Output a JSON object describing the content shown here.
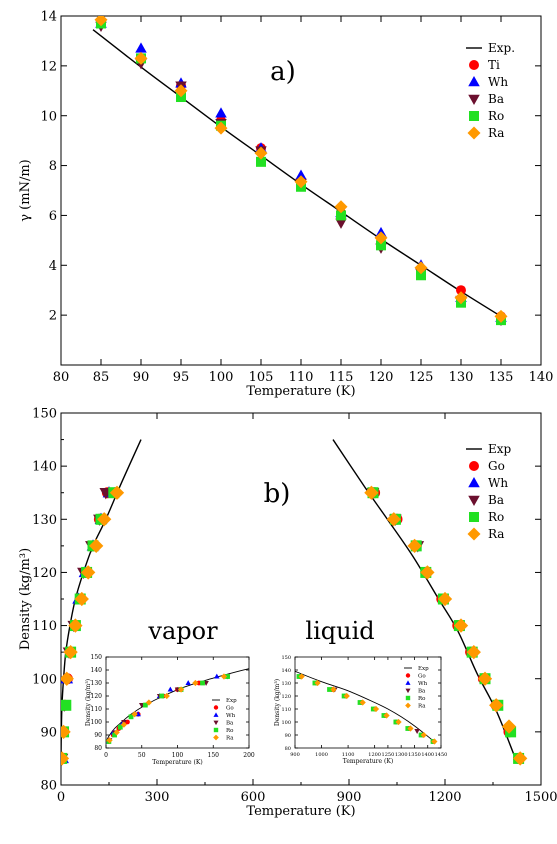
{
  "chart_data": [
    {
      "type": "scatter",
      "panel_label": "a)",
      "xlabel": "Temperature (K)",
      "ylabel": "γ (mN/m)",
      "xlim": [
        80,
        140
      ],
      "ylim": [
        0,
        14
      ],
      "xticks": [
        80,
        85,
        90,
        95,
        100,
        105,
        110,
        115,
        120,
        125,
        130,
        135,
        140
      ],
      "yticks": [
        2,
        4,
        6,
        8,
        10,
        12,
        14
      ],
      "legend_position": "top-right",
      "line": {
        "name": "Exp.",
        "x": [
          84,
          90,
          95,
          100,
          105,
          110,
          115,
          120,
          125,
          130,
          135
        ],
        "y": [
          13.45,
          11.95,
          10.75,
          9.55,
          8.4,
          7.25,
          6.15,
          5.05,
          4.0,
          2.95,
          1.95
        ]
      },
      "series": [
        {
          "name": "Ti",
          "marker": "circle",
          "color": "#ff0000",
          "x": [
            85,
            90,
            95,
            100,
            105,
            110,
            115,
            120,
            125,
            130,
            135
          ],
          "y": [
            13.8,
            12.3,
            11.2,
            9.8,
            8.7,
            7.4,
            6.1,
            5.1,
            3.8,
            3.0,
            1.95
          ]
        },
        {
          "name": "Wh",
          "marker": "triangle-up",
          "color": "#0000ff",
          "x": [
            85,
            90,
            95,
            100,
            105,
            110,
            115,
            120,
            125,
            130,
            135
          ],
          "y": [
            13.7,
            12.7,
            11.3,
            10.1,
            8.7,
            7.6,
            6.1,
            5.3,
            4.0,
            2.7,
            1.9
          ]
        },
        {
          "name": "Ba",
          "marker": "triangle-down",
          "color": "#6b0f2e",
          "x": [
            85,
            90,
            95,
            100,
            105,
            110,
            115,
            120,
            125,
            130,
            135
          ],
          "y": [
            13.6,
            12.1,
            11.2,
            9.7,
            8.6,
            7.3,
            5.7,
            4.7,
            3.7,
            2.6,
            1.8
          ]
        },
        {
          "name": "Ro",
          "marker": "square",
          "color": "#22e022",
          "x": [
            85,
            90,
            95,
            100,
            105,
            110,
            115,
            120,
            125,
            130,
            135
          ],
          "y": [
            13.7,
            12.3,
            10.75,
            9.6,
            8.15,
            7.15,
            6.0,
            4.8,
            3.6,
            2.5,
            1.8
          ]
        },
        {
          "name": "Ra",
          "marker": "diamond",
          "color": "#ff9900",
          "x": [
            85,
            90,
            95,
            100,
            105,
            110,
            115,
            120,
            125,
            130,
            135
          ],
          "y": [
            13.85,
            12.3,
            11.0,
            9.5,
            8.5,
            7.35,
            6.35,
            5.1,
            3.9,
            2.7,
            1.95
          ]
        }
      ]
    },
    {
      "type": "scatter",
      "panel_label": "b)",
      "xlabel": "Temperature (K)",
      "ylabel": "Density (kg/m³)",
      "xlim": [
        0,
        1500
      ],
      "ylim": [
        80,
        150
      ],
      "xticks": [
        0,
        300,
        600,
        900,
        1200,
        1500
      ],
      "yticks": [
        80,
        90,
        100,
        110,
        120,
        130,
        140,
        150
      ],
      "legend_position": "top-right",
      "annotations": [
        "vapor",
        "liquid"
      ],
      "line_vapor": {
        "name": "Exp",
        "x": [
          0,
          1,
          3,
          8,
          15,
          28,
          45,
          70,
          100,
          140,
          190,
          250
        ],
        "y": [
          85,
          90,
          95,
          100,
          105,
          110,
          115,
          120,
          125,
          130,
          137,
          145
        ]
      },
      "line_liquid": {
        "name": "Exp",
        "x": [
          850,
          950,
          1020,
          1100,
          1180,
          1240,
          1300,
          1360,
          1420
        ],
        "y": [
          145,
          136,
          130,
          123,
          115,
          109,
          101,
          94,
          85
        ]
      },
      "series": [
        {
          "name": "Go",
          "marker": "circle",
          "color": "#ff0000",
          "x": [
            2,
            5,
            12,
            20,
            30,
            45,
            60,
            80,
            100,
            120,
            145,
            170,
            980,
            1050,
            1110,
            1140,
            1190,
            1240,
            1280,
            1320,
            1360,
            1400,
            1430
          ],
          "y": [
            85,
            90,
            95,
            100,
            105,
            110,
            115,
            120,
            125,
            130,
            135,
            135,
            135,
            130,
            125,
            120,
            115,
            110,
            105,
            100,
            95,
            90,
            85
          ]
        },
        {
          "name": "Wh",
          "marker": "triangle-up",
          "color": "#0000ff",
          "x": [
            5,
            18,
            55,
            75,
            100,
            125,
            150
          ],
          "y": [
            85,
            100,
            115,
            120,
            125,
            130,
            135
          ]
        },
        {
          "name": "Ba",
          "marker": "triangle-down",
          "color": "#6b0f2e",
          "x": [
            3,
            10,
            25,
            40,
            70,
            95,
            120,
            140,
            975,
            1045,
            1115
          ],
          "y": [
            85,
            95,
            105,
            110,
            120,
            125,
            130,
            135,
            135,
            130,
            125
          ]
        },
        {
          "name": "Ro",
          "marker": "square",
          "color": "#22e022",
          "x": [
            2,
            8,
            15,
            30,
            45,
            60,
            80,
            100,
            125,
            165,
            975,
            1045,
            1110,
            1140,
            1195,
            1245,
            1285,
            1325,
            1365,
            1405,
            1430
          ],
          "y": [
            85,
            90,
            95,
            105,
            110,
            115,
            120,
            125,
            130,
            135,
            135,
            130,
            125,
            120,
            115,
            110,
            105,
            100,
            95,
            90,
            85
          ]
        },
        {
          "name": "Ra",
          "marker": "diamond",
          "color": "#ff9900",
          "x": [
            3,
            8,
            18,
            30,
            45,
            65,
            85,
            110,
            135,
            175,
            970,
            1040,
            1105,
            1145,
            1200,
            1250,
            1290,
            1325,
            1360,
            1400,
            1435
          ],
          "y": [
            85,
            90,
            100,
            105,
            110,
            115,
            120,
            125,
            130,
            135,
            135,
            130,
            125,
            120,
            115,
            110,
            105,
            100,
            95,
            91,
            85
          ]
        }
      ]
    },
    {
      "type": "scatter",
      "inset": "vapor",
      "xlabel": "Temperature (K)",
      "ylabel": "Density (kg/m³)",
      "xlim": [
        0,
        200
      ],
      "ylim": [
        80,
        150
      ],
      "xticks": [
        0,
        50,
        100,
        150,
        200
      ],
      "yticks": [
        80,
        90,
        100,
        110,
        120,
        130,
        140,
        150
      ],
      "legend_position": "bottom-right",
      "line": {
        "name": "Exp",
        "x": [
          0,
          5,
          12,
          22,
          35,
          55,
          80,
          110,
          145,
          185,
          200
        ],
        "y": [
          85,
          90,
          95,
          100,
          106,
          113,
          120,
          127,
          133,
          139,
          141
        ]
      },
      "series": [
        {
          "name": "Go",
          "marker": "circle",
          "color": "#ff0000",
          "x": [
            3,
            10,
            18,
            30,
            45,
            55,
            80,
            100,
            130,
            170
          ],
          "y": [
            85,
            90,
            95,
            100,
            106,
            113,
            120,
            125,
            130,
            135
          ]
        },
        {
          "name": "Wh",
          "marker": "triangle-up",
          "color": "#0000ff",
          "x": [
            3,
            10,
            22,
            45,
            75,
            90,
            115,
            155
          ],
          "y": [
            85,
            92,
            98,
            106,
            120,
            125,
            130,
            135
          ]
        },
        {
          "name": "Ba",
          "marker": "triangle-down",
          "color": "#6b0f2e",
          "x": [
            5,
            12,
            25,
            50,
            75,
            100,
            140,
            170
          ],
          "y": [
            86,
            92,
            100,
            113,
            120,
            125,
            130,
            135
          ]
        },
        {
          "name": "Ro",
          "marker": "square",
          "color": "#22e022",
          "x": [
            4,
            12,
            20,
            35,
            55,
            78,
            105,
            135,
            170
          ],
          "y": [
            85,
            90,
            96,
            104,
            113,
            120,
            125,
            130,
            135
          ]
        },
        {
          "name": "Ra",
          "marker": "diamond",
          "color": "#ff9900",
          "x": [
            5,
            15,
            25,
            40,
            60,
            85,
            105,
            125,
            165
          ],
          "y": [
            86,
            92,
            98,
            106,
            115,
            120,
            125,
            130,
            135
          ]
        }
      ]
    },
    {
      "type": "scatter",
      "inset": "liquid",
      "xlabel": "Temperature (K)",
      "ylabel": "Density (kg/m³)",
      "xlim": [
        900,
        1450
      ],
      "ylim": [
        80,
        150
      ],
      "xticks": [
        900,
        1000,
        1100,
        1200,
        1250,
        1300,
        1350,
        1400,
        1450
      ],
      "yticks": [
        80,
        90,
        100,
        110,
        120,
        130,
        140,
        150
      ],
      "legend_position": "top-right",
      "line": {
        "name": "Exp",
        "x": [
          900,
          1000,
          1100,
          1200,
          1250,
          1300,
          1350,
          1400,
          1430
        ],
        "y": [
          139,
          131,
          124,
          115,
          110,
          104,
          97,
          89,
          84
        ]
      },
      "series": [
        {
          "name": "Go",
          "marker": "circle",
          "color": "#ff0000",
          "x": [
            920,
            980,
            1040,
            1090,
            1150,
            1200,
            1240,
            1280,
            1330,
            1380,
            1420
          ],
          "y": [
            135,
            130,
            125,
            120,
            115,
            110,
            105,
            100,
            95,
            90,
            85
          ]
        },
        {
          "name": "Wh",
          "marker": "triangle-up",
          "color": "#0000ff",
          "x": [
            920,
            1380
          ],
          "y": [
            135,
            90
          ]
        },
        {
          "name": "Ba",
          "marker": "triangle-down",
          "color": "#6b0f2e",
          "x": [
            920,
            1050,
            1360
          ],
          "y": [
            135,
            125,
            93
          ]
        },
        {
          "name": "Ro",
          "marker": "square",
          "color": "#22e022",
          "x": [
            915,
            975,
            1030,
            1085,
            1145,
            1195,
            1235,
            1280,
            1325,
            1375,
            1420
          ],
          "y": [
            135,
            130,
            125,
            120,
            115,
            110,
            105,
            100,
            95,
            90,
            85
          ]
        },
        {
          "name": "Ra",
          "marker": "diamond",
          "color": "#ff9900",
          "x": [
            925,
            985,
            1045,
            1095,
            1155,
            1205,
            1245,
            1290,
            1335,
            1385,
            1425
          ],
          "y": [
            135,
            130,
            125,
            120,
            115,
            110,
            105,
            100,
            95,
            90,
            85
          ]
        }
      ]
    }
  ]
}
